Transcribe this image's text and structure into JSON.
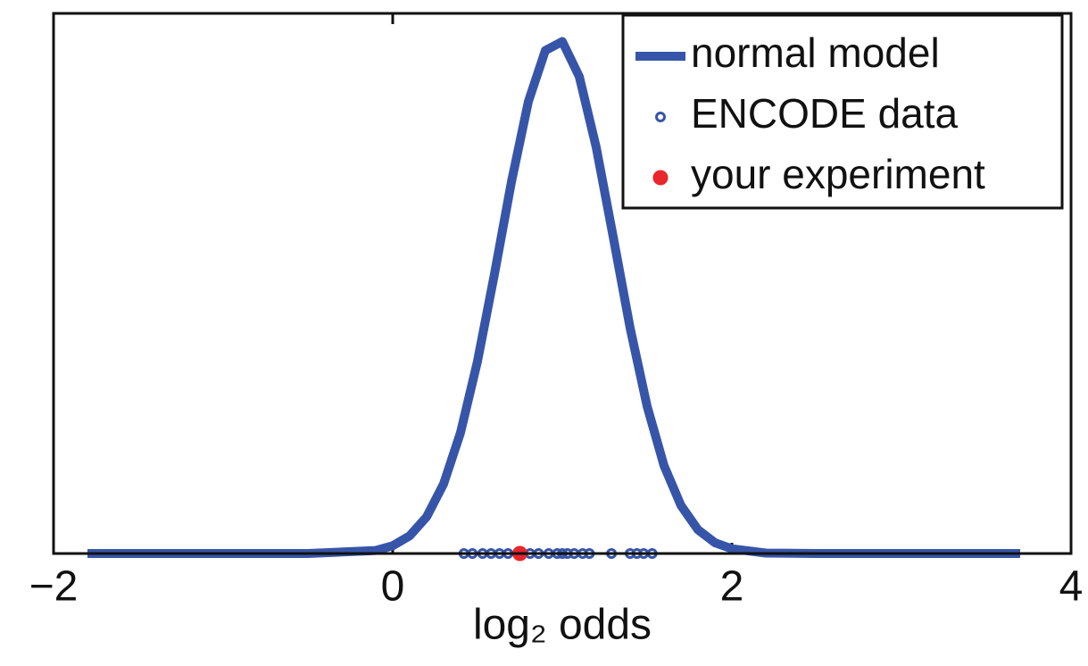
{
  "chart_data": {
    "type": "line",
    "x_label": "log₂ odds",
    "xlim": [
      -2,
      4
    ],
    "ylim": [
      0,
      1.25
    ],
    "xticks": [
      {
        "value": -2,
        "label": "−2"
      },
      0,
      2,
      4
    ],
    "legend": "upper right",
    "series": [
      {
        "name": "normal model",
        "type": "line",
        "color": "#3755a8",
        "x": [
          -1.8,
          -1,
          -0.5,
          -0.1,
          0,
          0.1,
          0.2,
          0.3,
          0.4,
          0.5,
          0.6,
          0.7,
          0.8,
          0.9,
          1.0,
          1.1,
          1.2,
          1.3,
          1.4,
          1.5,
          1.6,
          1.7,
          1.8,
          1.9,
          2.0,
          2.2,
          2.5,
          3,
          3.7
        ],
        "values": [
          0,
          0,
          0,
          0.007,
          0.018,
          0.041,
          0.085,
          0.161,
          0.28,
          0.445,
          0.647,
          0.86,
          1.046,
          1.164,
          1.185,
          1.104,
          0.94,
          0.733,
          0.522,
          0.341,
          0.203,
          0.111,
          0.055,
          0.025,
          0.011,
          0.001,
          0,
          0,
          0
        ]
      },
      {
        "name": "ENCODE data",
        "type": "scatter",
        "marker": "open",
        "color": "#3755a8",
        "x": [
          0.42,
          0.47,
          0.53,
          0.58,
          0.63,
          0.68,
          0.74,
          0.81,
          0.86,
          0.92,
          0.97,
          1.0,
          1.03,
          1.07,
          1.12,
          1.16,
          1.29,
          1.4,
          1.44,
          1.48,
          1.53
        ],
        "values": [
          0,
          0,
          0,
          0,
          0,
          0,
          0,
          0,
          0,
          0,
          0,
          0,
          0,
          0,
          0,
          0,
          0,
          0,
          0,
          0,
          0
        ]
      },
      {
        "name": "your experiment",
        "type": "scatter",
        "marker": "filled",
        "color": "#e8262b",
        "x": [
          0.75
        ],
        "values": [
          0
        ]
      }
    ]
  }
}
